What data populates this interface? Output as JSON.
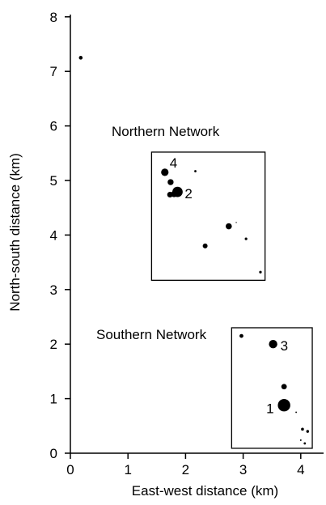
{
  "chart_data": {
    "type": "scatter",
    "xlabel": "East-west distance (km)",
    "ylabel": "North-south distance (km)",
    "xlim": [
      0,
      4.2
    ],
    "ylim": [
      0,
      8
    ],
    "x_ticks": [
      0,
      1,
      2,
      3,
      4
    ],
    "y_ticks": [
      0,
      1,
      2,
      3,
      4,
      5,
      6,
      7,
      8
    ],
    "grid": false,
    "points": [
      {
        "x": 0.18,
        "y": 7.25,
        "size": 2.3
      },
      {
        "x": 1.64,
        "y": 5.15,
        "size": 4.6
      },
      {
        "x": 1.74,
        "y": 4.97,
        "size": 3.7
      },
      {
        "x": 1.73,
        "y": 4.74,
        "size": 3.5
      },
      {
        "x": 1.8,
        "y": 4.75,
        "size": 3.8
      },
      {
        "x": 1.86,
        "y": 4.79,
        "size": 6.4
      },
      {
        "x": 2.17,
        "y": 5.17,
        "size": 1.4
      },
      {
        "x": 2.75,
        "y": 4.16,
        "size": 3.8
      },
      {
        "x": 2.88,
        "y": 4.23,
        "size": 0.7
      },
      {
        "x": 3.05,
        "y": 3.93,
        "size": 1.6
      },
      {
        "x": 2.34,
        "y": 3.8,
        "size": 3.0
      },
      {
        "x": 3.3,
        "y": 3.32,
        "size": 1.6
      },
      {
        "x": 2.97,
        "y": 2.15,
        "size": 2.4
      },
      {
        "x": 3.52,
        "y": 2.0,
        "size": 5.2
      },
      {
        "x": 3.71,
        "y": 1.22,
        "size": 3.4
      },
      {
        "x": 3.71,
        "y": 0.88,
        "size": 7.7
      },
      {
        "x": 3.92,
        "y": 0.75,
        "size": 0.9
      },
      {
        "x": 4.03,
        "y": 0.44,
        "size": 1.8
      },
      {
        "x": 4.12,
        "y": 0.4,
        "size": 1.8
      },
      {
        "x": 4.0,
        "y": 0.24,
        "size": 1.0
      },
      {
        "x": 4.07,
        "y": 0.18,
        "size": 1.4
      }
    ],
    "point_labels": [
      {
        "text": "4",
        "x": 1.64,
        "y": 5.15
      },
      {
        "text": "2",
        "x": 1.86,
        "y": 4.79
      },
      {
        "text": "3",
        "x": 3.52,
        "y": 2.0
      },
      {
        "text": "1",
        "x": 3.71,
        "y": 0.88
      }
    ],
    "networks": [
      {
        "label": "Northern Network",
        "x0": 1.41,
        "x1": 3.38,
        "y0": 3.17,
        "y1": 5.52
      },
      {
        "label": "Southern Network",
        "x0": 2.8,
        "x1": 4.2,
        "y0": 0.09,
        "y1": 2.3
      }
    ]
  }
}
